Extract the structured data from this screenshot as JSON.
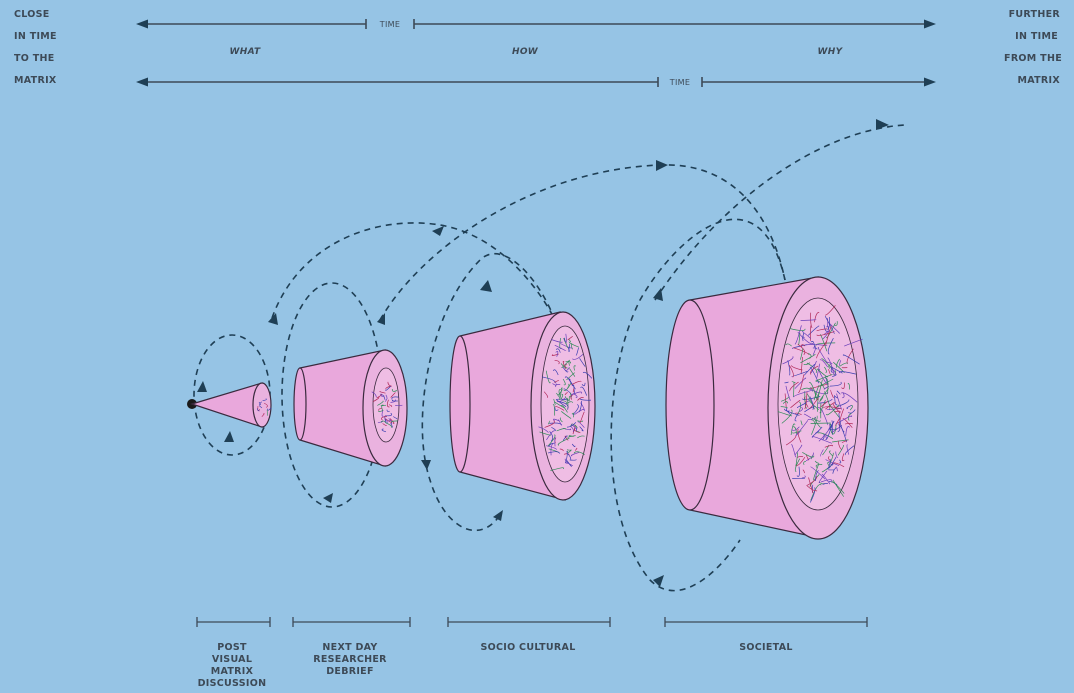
{
  "top_left_label": [
    "CLOSE",
    "IN TIME",
    "TO THE",
    "MATRIX"
  ],
  "top_right_label": [
    "FURTHER",
    "IN TIME",
    "FROM THE",
    "MATRIX"
  ],
  "time_axis_upper": "TIME",
  "time_axis_lower": "TIME",
  "phases": [
    "WHAT",
    "HOW",
    "WHY"
  ],
  "stages": [
    {
      "label": [
        "POST",
        "VISUAL",
        "MATRIX",
        "DISCUSSION"
      ]
    },
    {
      "label": [
        "NEXT DAY",
        "RESEARCHER",
        "DEBRIEF"
      ]
    },
    {
      "label": [
        "SOCIO CULTURAL"
      ]
    },
    {
      "label": [
        "SOCIETAL"
      ]
    }
  ],
  "colors": {
    "background": "#96c4e5",
    "text": "#3d4a57",
    "cone": "#e9a8dc",
    "loop": "#1f3f55",
    "scribble": [
      "#3b3fb0",
      "#b02a5a",
      "#2e8b57",
      "#6a3fb8"
    ]
  }
}
